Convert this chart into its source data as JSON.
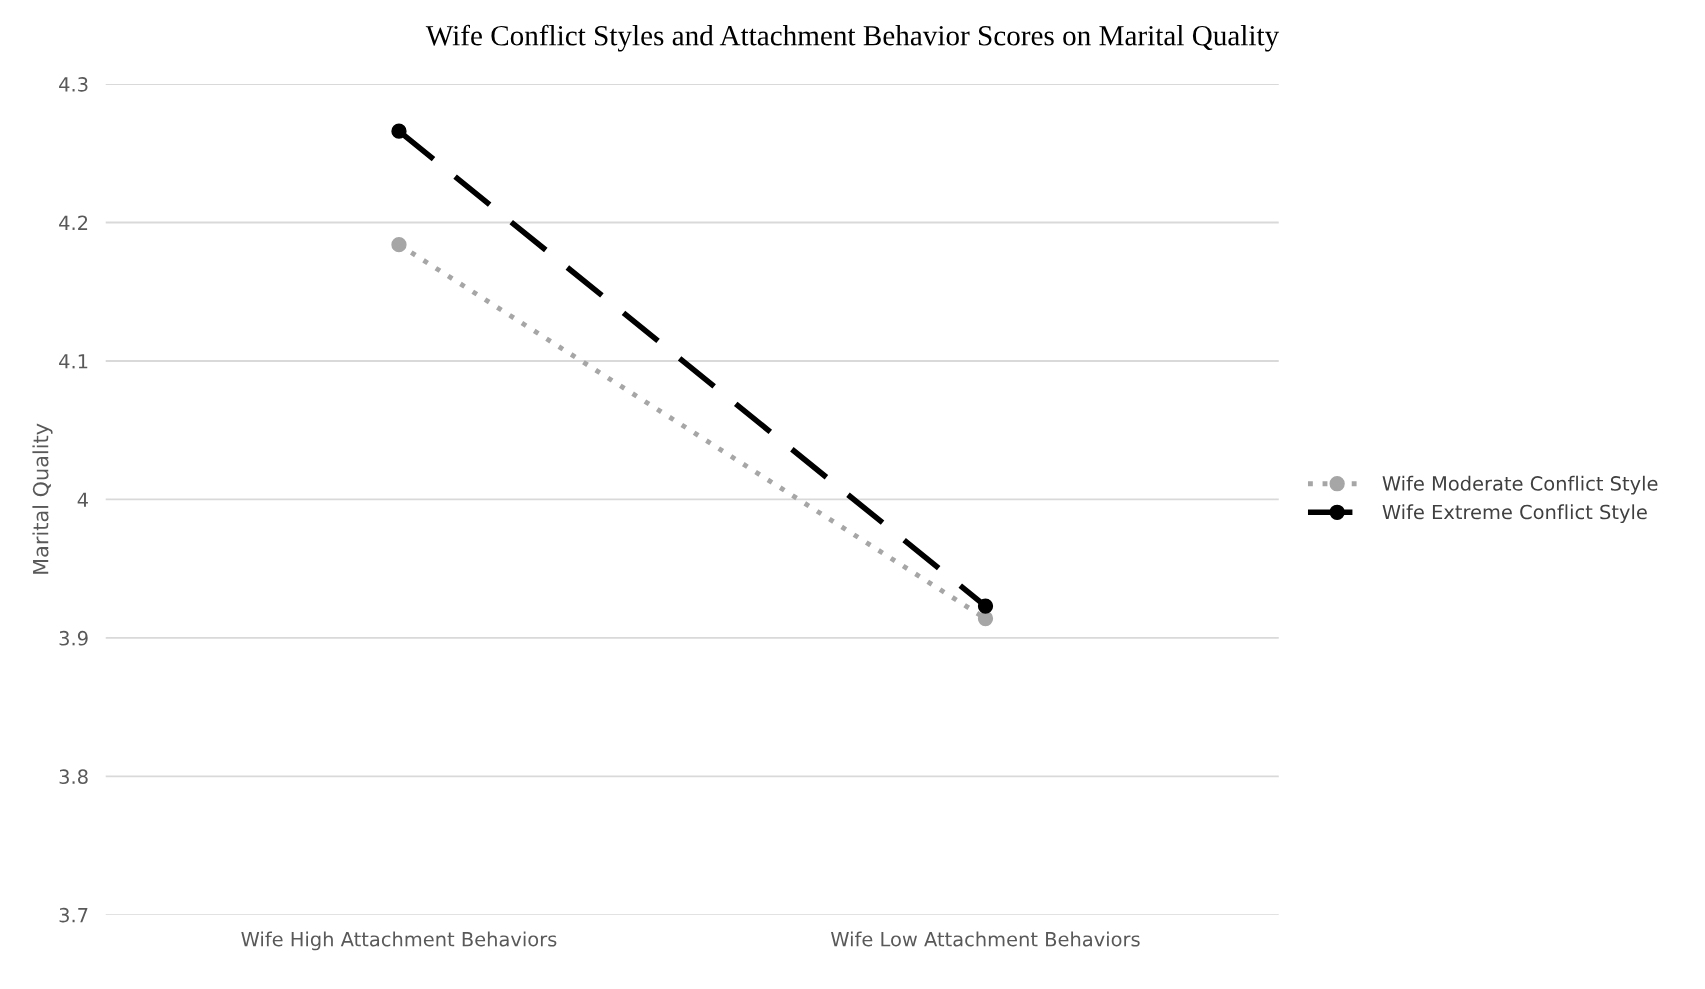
{
  "chart_data": {
    "type": "line",
    "title": "Wife Conflict Styles and Attachment Behavior Scores on Marital Quality",
    "ylabel": "Marital Quality",
    "categories": [
      "Wife High Attachment Behaviors",
      "Wife Low Attachment Behaviors"
    ],
    "series": [
      {
        "name": "Wife Moderate Conflict Style",
        "color": "#a6a6a6",
        "values": [
          4.184,
          3.914
        ],
        "line_style": "dotted",
        "marker": "circle"
      },
      {
        "name": "Wife Extreme Conflict Style",
        "color": "#000000",
        "values": [
          4.266,
          3.923
        ],
        "line_style": "dashed",
        "marker": "circle"
      }
    ],
    "ylim": [
      3.7,
      4.3
    ],
    "yticks": [
      3.7,
      3.8,
      3.9,
      4,
      4.1,
      4.2,
      4.3
    ],
    "grid": "y",
    "legend": "right"
  }
}
